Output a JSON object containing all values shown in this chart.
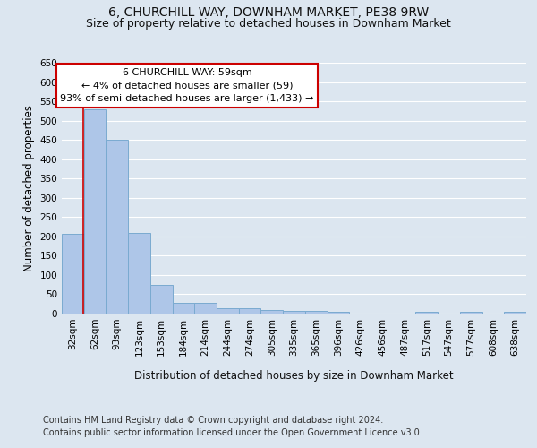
{
  "title": "6, CHURCHILL WAY, DOWNHAM MARKET, PE38 9RW",
  "subtitle": "Size of property relative to detached houses in Downham Market",
  "xlabel": "Distribution of detached houses by size in Downham Market",
  "ylabel": "Number of detached properties",
  "footer_line1": "Contains HM Land Registry data © Crown copyright and database right 2024.",
  "footer_line2": "Contains public sector information licensed under the Open Government Licence v3.0.",
  "categories": [
    "32sqm",
    "62sqm",
    "93sqm",
    "123sqm",
    "153sqm",
    "184sqm",
    "214sqm",
    "244sqm",
    "274sqm",
    "305sqm",
    "335sqm",
    "365sqm",
    "396sqm",
    "426sqm",
    "456sqm",
    "487sqm",
    "517sqm",
    "547sqm",
    "577sqm",
    "608sqm",
    "638sqm"
  ],
  "values": [
    207,
    530,
    450,
    210,
    75,
    27,
    27,
    15,
    13,
    10,
    8,
    8,
    5,
    0,
    0,
    0,
    5,
    0,
    5,
    0,
    5
  ],
  "bar_color": "#aec6e8",
  "bar_edge_color": "#7aaad0",
  "annotation_title": "6 CHURCHILL WAY: 59sqm",
  "annotation_line1": "← 4% of detached houses are smaller (59)",
  "annotation_line2": "93% of semi-detached houses are larger (1,433) →",
  "annotation_box_color": "#ffffff",
  "annotation_box_edge": "#cc0000",
  "vline_color": "#cc0000",
  "ylim": [
    0,
    650
  ],
  "yticks": [
    0,
    50,
    100,
    150,
    200,
    250,
    300,
    350,
    400,
    450,
    500,
    550,
    600,
    650
  ],
  "background_color": "#dce6f0",
  "plot_background": "#dce6f0",
  "grid_color": "#ffffff",
  "title_fontsize": 10,
  "subtitle_fontsize": 9,
  "axis_label_fontsize": 8.5,
  "tick_fontsize": 7.5,
  "annotation_fontsize": 8,
  "footer_fontsize": 7
}
